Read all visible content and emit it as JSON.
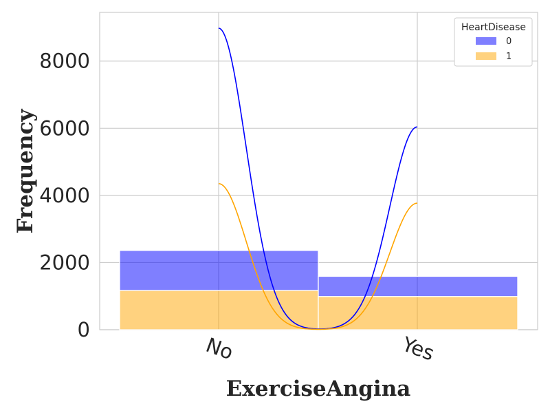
{
  "chart_data": {
    "type": "bar",
    "stacked": true,
    "xlabel": "ExerciseAngina",
    "ylabel": "Frequency",
    "categories": [
      "No",
      "Yes"
    ],
    "ylim": [
      0,
      9450
    ],
    "yticks": [
      0,
      2000,
      4000,
      6000,
      8000
    ],
    "grid": true,
    "legend": {
      "title": "HeartDisease",
      "position": "top-right",
      "entries": [
        "0",
        "1"
      ]
    },
    "series": [
      {
        "name": "1",
        "color": "#FFA500",
        "opacity": 0.5,
        "values": [
          1170,
          990
        ]
      },
      {
        "name": "0",
        "color": "#0000FF",
        "opacity": 0.5,
        "values": [
          1190,
          600
        ]
      }
    ],
    "kde": [
      {
        "name": "0",
        "color": "#0000FF",
        "peaks": [
          8980,
          6040
        ]
      },
      {
        "name": "1",
        "color": "#FFA500",
        "peaks": [
          4350,
          3770
        ]
      }
    ]
  }
}
